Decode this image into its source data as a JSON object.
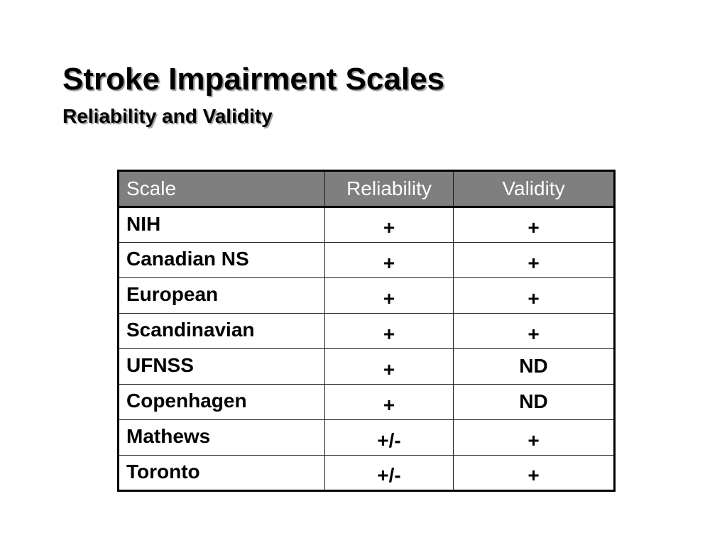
{
  "slide": {
    "title": "Stroke Impairment Scales",
    "subtitle": "Reliability and Validity"
  },
  "table": {
    "headers": {
      "scale": "Scale",
      "reliability": "Reliability",
      "validity": "Validity"
    },
    "rows": [
      {
        "scale": "NIH",
        "reliability": "+",
        "validity": "+"
      },
      {
        "scale": "Canadian NS",
        "reliability": "+",
        "validity": "+"
      },
      {
        "scale": "European",
        "reliability": "+",
        "validity": "+"
      },
      {
        "scale": "Scandinavian",
        "reliability": "+",
        "validity": "+"
      },
      {
        "scale": "UFNSS",
        "reliability": "+",
        "validity": "ND"
      },
      {
        "scale": "Copenhagen",
        "reliability": "+",
        "validity": "ND"
      },
      {
        "scale": "Mathews",
        "reliability": "+/-",
        "validity": "+"
      },
      {
        "scale": "Toronto",
        "reliability": "+/-",
        "validity": "+"
      }
    ]
  },
  "colors": {
    "header_background": "#7f7f7f",
    "header_text": "#ffffff",
    "border": "#000000"
  }
}
